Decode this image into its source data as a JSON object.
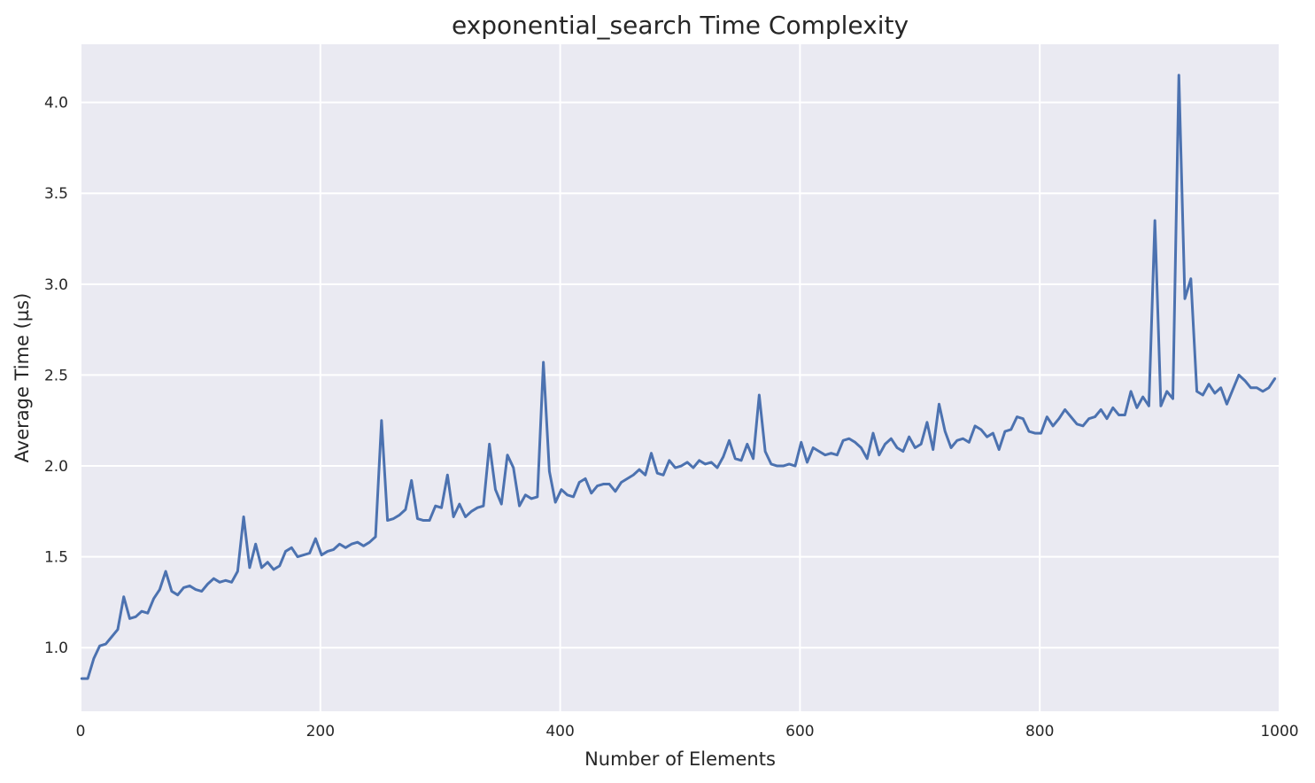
{
  "chart_data": {
    "type": "line",
    "title": "exponential_search Time Complexity",
    "xlabel": "Number of Elements",
    "ylabel": "Average Time (µs)",
    "xlim": [
      0,
      1000
    ],
    "ylim": [
      0.65,
      4.32
    ],
    "xticks": [
      0,
      200,
      400,
      600,
      800,
      1000
    ],
    "yticks": [
      1.0,
      1.5,
      2.0,
      2.5,
      3.0,
      3.5,
      4.0
    ],
    "ytick_labels": [
      "1.0",
      "1.5",
      "2.0",
      "2.5",
      "3.0",
      "3.5",
      "4.0"
    ],
    "grid": true,
    "colors": {
      "background": "#EAEAF2",
      "grid": "#FFFFFF",
      "line": "#4C72B0"
    },
    "series": [
      {
        "x": [
          1,
          6,
          11,
          16,
          21,
          26,
          31,
          36,
          41,
          46,
          51,
          56,
          61,
          66,
          71,
          76,
          81,
          86,
          91,
          96,
          101,
          106,
          111,
          116,
          121,
          126,
          131,
          136,
          141,
          146,
          151,
          156,
          161,
          166,
          171,
          176,
          181,
          186,
          191,
          196,
          201,
          206,
          211,
          216,
          221,
          226,
          231,
          236,
          241,
          246,
          251,
          256,
          261,
          266,
          271,
          276,
          281,
          286,
          291,
          296,
          301,
          306,
          311,
          316,
          321,
          326,
          331,
          336,
          341,
          346,
          351,
          356,
          361,
          366,
          371,
          376,
          381,
          386,
          391,
          396,
          401,
          406,
          411,
          416,
          421,
          426,
          431,
          436,
          441,
          446,
          451,
          456,
          461,
          466,
          471,
          476,
          481,
          486,
          491,
          496,
          501,
          506,
          511,
          516,
          521,
          526,
          531,
          536,
          541,
          546,
          551,
          556,
          561,
          566,
          571,
          576,
          581,
          586,
          591,
          596,
          601,
          606,
          611,
          616,
          621,
          626,
          631,
          636,
          641,
          646,
          651,
          656,
          661,
          666,
          671,
          676,
          681,
          686,
          691,
          696,
          701,
          706,
          711,
          716,
          721,
          726,
          731,
          736,
          741,
          746,
          751,
          756,
          761,
          766,
          771,
          776,
          781,
          786,
          791,
          796,
          801,
          806,
          811,
          816,
          821,
          826,
          831,
          836,
          841,
          846,
          851,
          856,
          861,
          866,
          871,
          876,
          881,
          886,
          891,
          896,
          901,
          906,
          911,
          916,
          921,
          926,
          931,
          936,
          941,
          946,
          951,
          956,
          961,
          966,
          971,
          976,
          981,
          986,
          991,
          996
        ],
        "y": [
          0.83,
          0.83,
          0.94,
          1.01,
          1.02,
          1.06,
          1.1,
          1.28,
          1.16,
          1.17,
          1.2,
          1.19,
          1.27,
          1.32,
          1.42,
          1.31,
          1.29,
          1.33,
          1.34,
          1.32,
          1.31,
          1.35,
          1.38,
          1.36,
          1.37,
          1.36,
          1.42,
          1.72,
          1.44,
          1.57,
          1.44,
          1.47,
          1.43,
          1.45,
          1.53,
          1.55,
          1.5,
          1.51,
          1.52,
          1.6,
          1.51,
          1.53,
          1.54,
          1.57,
          1.55,
          1.57,
          1.58,
          1.56,
          1.58,
          1.61,
          2.25,
          1.7,
          1.71,
          1.73,
          1.76,
          1.92,
          1.71,
          1.7,
          1.7,
          1.78,
          1.77,
          1.95,
          1.72,
          1.79,
          1.72,
          1.75,
          1.77,
          1.78,
          2.12,
          1.87,
          1.79,
          2.06,
          1.99,
          1.78,
          1.84,
          1.82,
          1.83,
          2.57,
          1.97,
          1.8,
          1.87,
          1.84,
          1.83,
          1.91,
          1.93,
          1.85,
          1.89,
          1.9,
          1.9,
          1.86,
          1.91,
          1.93,
          1.95,
          1.98,
          1.95,
          2.07,
          1.96,
          1.95,
          2.03,
          1.99,
          2.0,
          2.02,
          1.99,
          2.03,
          2.01,
          2.02,
          1.99,
          2.05,
          2.14,
          2.04,
          2.03,
          2.12,
          2.04,
          2.39,
          2.08,
          2.01,
          2.0,
          2.0,
          2.01,
          2.0,
          2.13,
          2.02,
          2.1,
          2.08,
          2.06,
          2.07,
          2.06,
          2.14,
          2.15,
          2.13,
          2.1,
          2.04,
          2.18,
          2.06,
          2.12,
          2.15,
          2.1,
          2.08,
          2.16,
          2.1,
          2.12,
          2.24,
          2.09,
          2.34,
          2.19,
          2.1,
          2.14,
          2.15,
          2.13,
          2.22,
          2.2,
          2.16,
          2.18,
          2.09,
          2.19,
          2.2,
          2.27,
          2.26,
          2.19,
          2.18,
          2.18,
          2.27,
          2.22,
          2.26,
          2.31,
          2.27,
          2.23,
          2.22,
          2.26,
          2.27,
          2.31,
          2.26,
          2.32,
          2.28,
          2.28,
          2.41,
          2.32,
          2.38,
          2.33,
          3.35,
          2.33,
          2.41,
          2.37,
          4.15,
          2.92,
          3.03,
          2.41,
          2.39,
          2.45,
          2.4,
          2.43,
          2.34,
          2.42,
          2.5,
          2.47,
          2.43,
          2.43,
          2.41,
          2.43,
          2.48
        ]
      }
    ]
  }
}
